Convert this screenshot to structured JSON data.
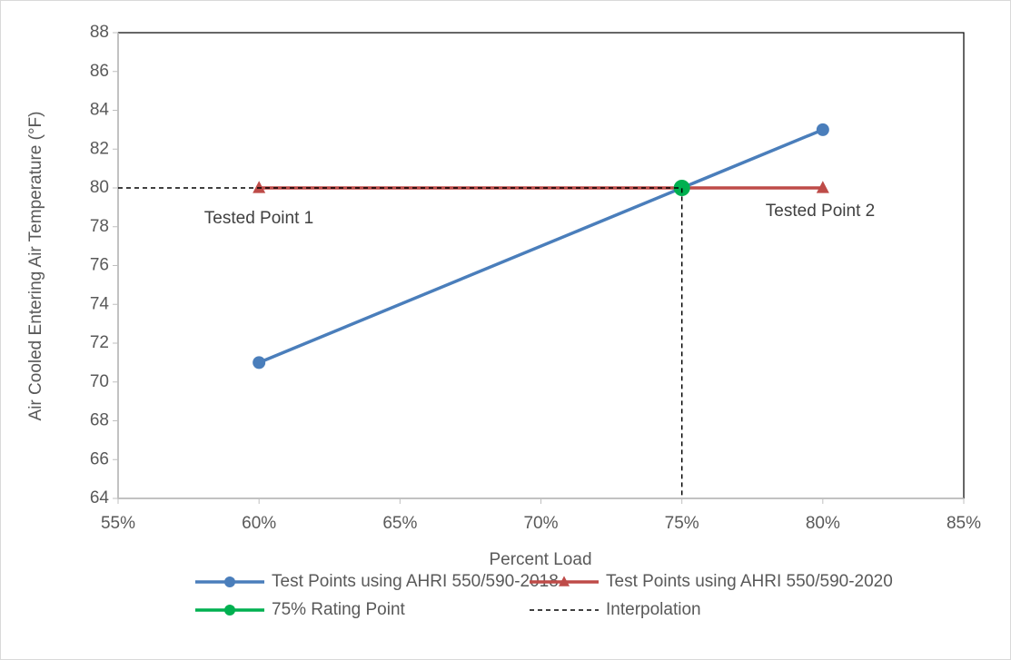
{
  "chart_data": {
    "type": "line",
    "xlabel": "Percent Load",
    "ylabel": "Air Cooled Entering Air Temperature (°F)",
    "xlim": [
      55,
      85
    ],
    "xticks": [
      {
        "value": 55,
        "label": "55%"
      },
      {
        "value": 60,
        "label": "60%"
      },
      {
        "value": 65,
        "label": "65%"
      },
      {
        "value": 70,
        "label": "70%"
      },
      {
        "value": 75,
        "label": "75%"
      },
      {
        "value": 80,
        "label": "80%"
      },
      {
        "value": 85,
        "label": "85%"
      }
    ],
    "ylim": [
      64,
      88
    ],
    "yticks": [
      64,
      66,
      68,
      70,
      72,
      74,
      76,
      78,
      80,
      82,
      84,
      86,
      88
    ],
    "grid": false,
    "legend": "bottom",
    "series": [
      {
        "name": "Test Points using AHRI 550/590-2018",
        "color": "#4a7ebb",
        "marker": "circle",
        "x": [
          60,
          80
        ],
        "values": [
          71,
          83
        ]
      },
      {
        "name": "Test Points using AHRI 550/590-2020",
        "color": "#be4b48",
        "marker": "triangle",
        "x": [
          60,
          80
        ],
        "values": [
          80,
          80
        ]
      },
      {
        "name": "75% Rating Point",
        "color": "#00b050",
        "marker": "circle",
        "x": [
          75
        ],
        "values": [
          80
        ]
      },
      {
        "name": "Interpolation",
        "color": "#000000",
        "dash": true,
        "x": [
          55,
          75,
          75
        ],
        "values": [
          80,
          80,
          64
        ]
      }
    ],
    "annotations": [
      {
        "text": "Tested Point 1"
      },
      {
        "text": "Tested Point 2"
      }
    ]
  }
}
